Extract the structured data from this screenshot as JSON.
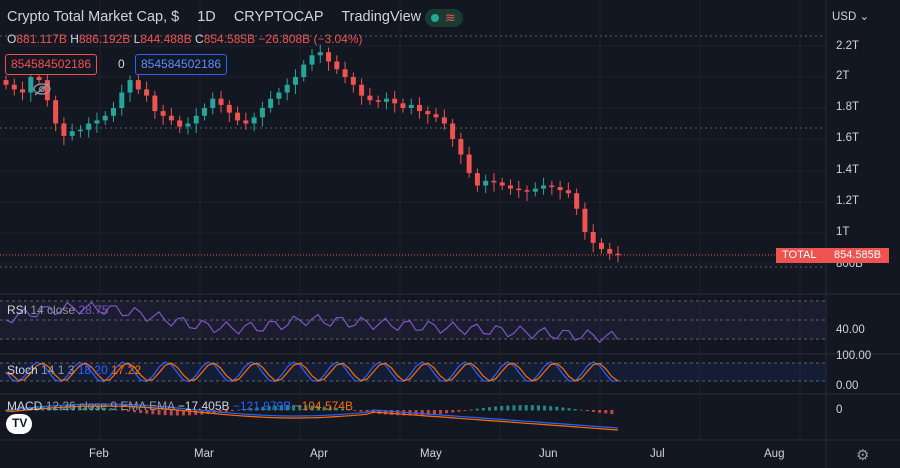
{
  "header": {
    "title": "Crypto Total Market Cap, $",
    "interval": "1D",
    "exchange": "CRYPTOCAP",
    "brand": "TradingView",
    "wave_glyph": "≋"
  },
  "ohlc": {
    "o_key": "O",
    "o": "881.117B",
    "h_key": "H",
    "h": "886.192B",
    "l_key": "L",
    "l": "844.488B",
    "c_key": "C",
    "c": "854.585B",
    "change": "−26.808B (−3.04%)"
  },
  "boxes": {
    "left": "854584502186",
    "zero": "0",
    "right": "854584502186"
  },
  "price_axis": {
    "currency": "USD",
    "labels": [
      "2.2T",
      "2T",
      "1.8T",
      "1.6T",
      "1.4T",
      "1.2T",
      "1T",
      "800B"
    ],
    "total_label": "TOTAL",
    "total_value": "854.585B"
  },
  "rsi": {
    "name": "RSI",
    "params": "14 close",
    "value": "28.75",
    "axis_label": "40.00"
  },
  "stoch": {
    "name": "Stoch",
    "params": "14 1 3",
    "k": "18.20",
    "d": "17.22",
    "axis_top": "100.00",
    "axis_bottom": "0.00"
  },
  "macd": {
    "name": "MACD",
    "params": "12 26 close 9 EMA EMA",
    "hist": "−17.405B",
    "macd_val": "−121.979B",
    "signal": "−104.574B",
    "axis_label": "0"
  },
  "time_axis": [
    "Feb",
    "Mar",
    "Apr",
    "May",
    "Jun",
    "Jul",
    "Aug"
  ],
  "colors": {
    "bg": "#131722",
    "up": "#26a69a",
    "down": "#ef5350",
    "rsi": "#7e57c2",
    "stoch_k": "#2962ff",
    "stoch_d": "#ff6d00"
  },
  "chart_data": {
    "type": "candlestick",
    "x_range": [
      "2022-01-01",
      "2022-08-20"
    ],
    "y_unit": "USD",
    "close_series_trillions": [
      1.95,
      1.92,
      1.9,
      2.0,
      1.98,
      1.85,
      1.7,
      1.62,
      1.65,
      1.66,
      1.7,
      1.72,
      1.75,
      1.8,
      1.9,
      1.98,
      1.92,
      1.88,
      1.78,
      1.75,
      1.72,
      1.68,
      1.7,
      1.75,
      1.8,
      1.86,
      1.82,
      1.77,
      1.72,
      1.7,
      1.74,
      1.8,
      1.86,
      1.9,
      1.95,
      2.0,
      2.08,
      2.14,
      2.16,
      2.1,
      2.05,
      2.0,
      1.95,
      1.88,
      1.85,
      1.84,
      1.86,
      1.83,
      1.8,
      1.82,
      1.78,
      1.76,
      1.74,
      1.7,
      1.6,
      1.5,
      1.38,
      1.3,
      1.33,
      1.32,
      1.3,
      1.28,
      1.27,
      1.26,
      1.28,
      1.3,
      1.29,
      1.27,
      1.25,
      1.15,
      1.0,
      0.93,
      0.89,
      0.86,
      0.855
    ]
  }
}
